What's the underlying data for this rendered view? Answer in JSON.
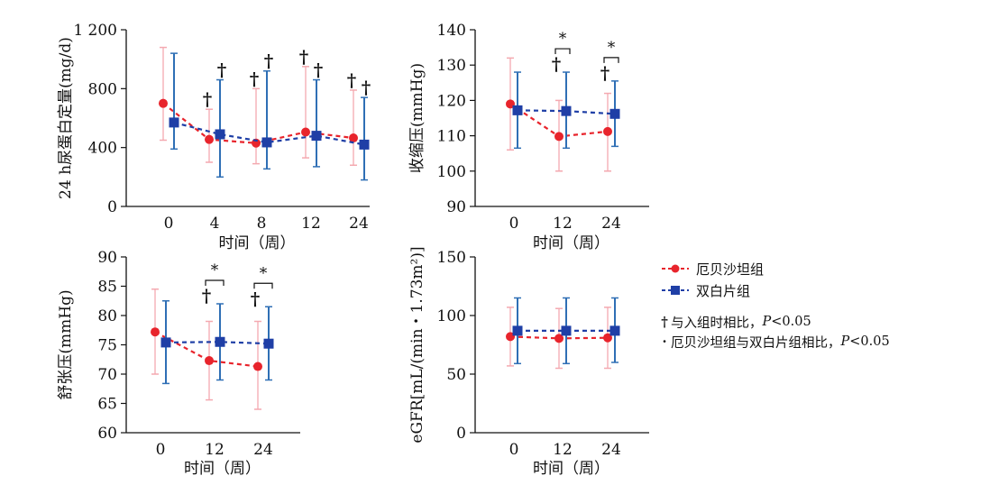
{
  "colors": {
    "series_a": "#e8242c",
    "series_a_error": "#f4a9b0",
    "series_b": "#1f3fa6",
    "series_b_error": "#2f6fb5",
    "axis": "#111111"
  },
  "legend": {
    "series": [
      {
        "label": "厄贝沙坦组",
        "marker": "circle"
      },
      {
        "label": "双白片组",
        "marker": "square"
      }
    ],
    "notes": [
      {
        "symbol": "†",
        "text": "与入组时相比，",
        "p": "P",
        "rest": "<0.05"
      },
      {
        "symbol": "·",
        "text": "厄贝沙坦组与双白片组相比，",
        "p": "P",
        "rest": "<0.05"
      }
    ]
  },
  "chart_data": [
    {
      "type": "line",
      "ylabel": "24 h尿蛋白定量(mg/d)",
      "xlabel": "时间（周）",
      "categories": [
        "0",
        "4",
        "8",
        "12",
        "24"
      ],
      "ylim": [
        0,
        1200
      ],
      "yticks": [
        "0",
        "400",
        "800",
        "1 200"
      ],
      "series": [
        {
          "name": "厄贝沙坦组",
          "values": [
            700,
            455,
            430,
            505,
            465
          ],
          "err_low": [
            450,
            300,
            290,
            330,
            280
          ],
          "err_high": [
            1080,
            660,
            800,
            950,
            790
          ]
        },
        {
          "name": "双白片组",
          "values": [
            570,
            490,
            435,
            480,
            420
          ],
          "err_low": [
            390,
            200,
            255,
            270,
            180
          ],
          "err_high": [
            1040,
            860,
            920,
            860,
            740
          ]
        }
      ],
      "annotations": [
        {
          "category": "4",
          "marks": [
            "†",
            "†"
          ]
        },
        {
          "category": "8",
          "marks": [
            "†",
            "†"
          ]
        },
        {
          "category": "12",
          "marks": [
            "†",
            "†"
          ]
        },
        {
          "category": "24",
          "marks": [
            "†",
            "†"
          ]
        }
      ]
    },
    {
      "type": "line",
      "ylabel": "收缩压(mmHg)",
      "xlabel": "时间（周）",
      "categories": [
        "0",
        "12",
        "24"
      ],
      "ylim": [
        90,
        140
      ],
      "yticks": [
        "90",
        "100",
        "110",
        "120",
        "130",
        "140"
      ],
      "series": [
        {
          "name": "厄贝沙坦组",
          "values": [
            119,
            109.8,
            111.2
          ],
          "err_low": [
            106,
            100,
            100
          ],
          "err_high": [
            132,
            120,
            122
          ]
        },
        {
          "name": "双白片组",
          "values": [
            117.2,
            117,
            116.2
          ],
          "err_low": [
            106.5,
            106.5,
            107
          ],
          "err_high": [
            128,
            128,
            125.5
          ]
        }
      ],
      "annotations": [
        {
          "category": "12",
          "marks": [
            "*",
            "†"
          ]
        },
        {
          "category": "24",
          "marks": [
            "*",
            "†"
          ]
        }
      ]
    },
    {
      "type": "line",
      "ylabel": "舒张压(mmHg)",
      "xlabel": "时间（周）",
      "categories": [
        "0",
        "12",
        "24"
      ],
      "ylim": [
        60,
        90
      ],
      "yticks": [
        "60",
        "65",
        "70",
        "75",
        "80",
        "85",
        "90"
      ],
      "series": [
        {
          "name": "厄贝沙坦组",
          "values": [
            77.2,
            72.3,
            71.3
          ],
          "err_low": [
            70,
            65.6,
            64
          ],
          "err_high": [
            84.5,
            79,
            79
          ]
        },
        {
          "name": "双白片组",
          "values": [
            75.4,
            75.5,
            75.2
          ],
          "err_low": [
            68.4,
            69,
            69
          ],
          "err_high": [
            82.5,
            82,
            81.5
          ]
        }
      ],
      "annotations": [
        {
          "category": "12",
          "marks": [
            "*",
            "†"
          ]
        },
        {
          "category": "24",
          "marks": [
            "*",
            "†"
          ]
        }
      ]
    },
    {
      "type": "line",
      "ylabel": "eGFR[mL/(min・1.73m²)]",
      "xlabel": "时间（周）",
      "categories": [
        "0",
        "12",
        "24"
      ],
      "ylim": [
        0,
        150
      ],
      "yticks": [
        "0",
        "50",
        "100",
        "150"
      ],
      "series": [
        {
          "name": "厄贝沙坦组",
          "values": [
            82,
            80.5,
            81
          ],
          "err_low": [
            57,
            55,
            55
          ],
          "err_high": [
            107,
            106,
            107
          ]
        },
        {
          "name": "双白片组",
          "values": [
            87,
            87,
            87
          ],
          "err_low": [
            59,
            59,
            60
          ],
          "err_high": [
            115,
            115,
            115
          ]
        }
      ],
      "annotations": []
    }
  ]
}
